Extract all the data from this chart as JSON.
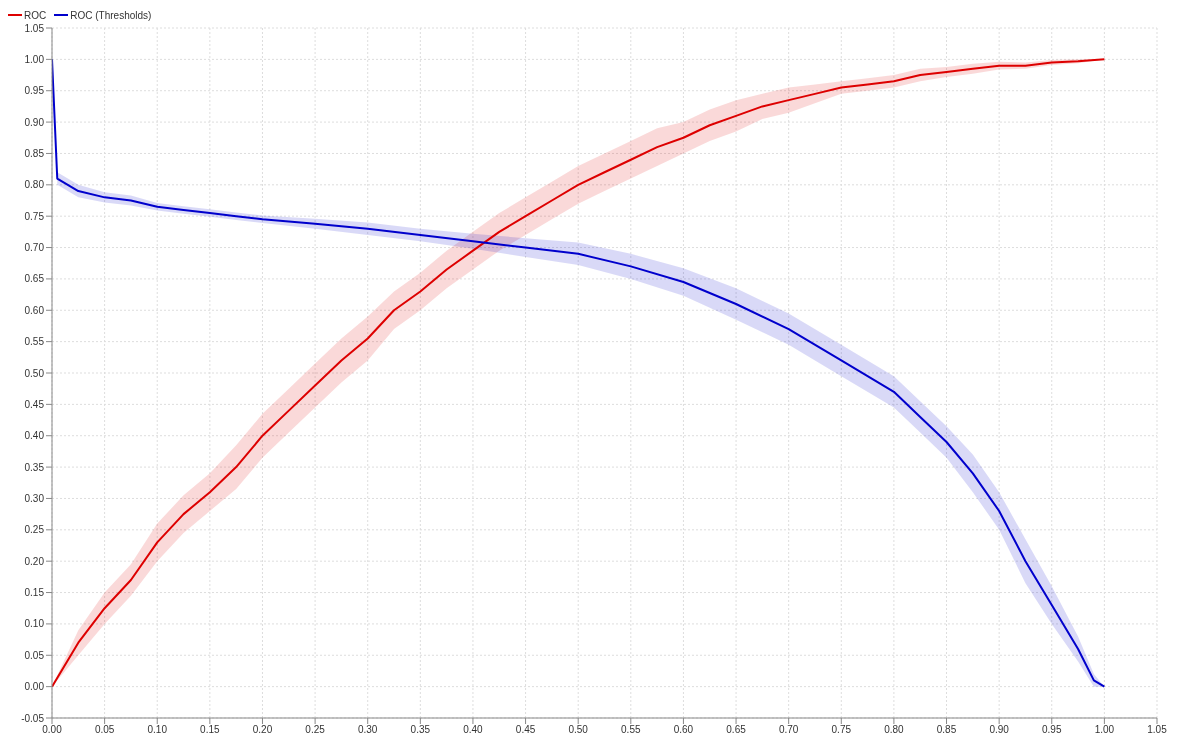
{
  "chart_data": {
    "type": "line",
    "legend": "top left",
    "grid": true,
    "line_style": "solid",
    "marker": "none",
    "xlim": [
      0,
      1.05
    ],
    "ylim": [
      -0.05,
      1.05
    ],
    "xticks": [
      {
        "value": 0,
        "label": "0.00"
      },
      0.05,
      {
        "value": 0.1,
        "label": "0.10"
      },
      0.15,
      {
        "value": 0.2,
        "label": "0.20"
      },
      0.25,
      {
        "value": 0.3,
        "label": "0.30"
      },
      0.35,
      {
        "value": 0.4,
        "label": "0.40"
      },
      0.45,
      {
        "value": 0.5,
        "label": "0.50"
      },
      0.55,
      {
        "value": 0.6,
        "label": "0.60"
      },
      0.65,
      {
        "value": 0.7,
        "label": "0.70"
      },
      0.75,
      {
        "value": 0.8,
        "label": "0.80"
      },
      0.85,
      {
        "value": 0.9,
        "label": "0.90"
      },
      0.95,
      {
        "value": 1,
        "label": "1.00"
      },
      1.05
    ],
    "yticks": [
      -0.05,
      {
        "value": 0,
        "label": "0.00"
      },
      0.05,
      {
        "value": 0.1,
        "label": "0.10"
      },
      0.15,
      {
        "value": 0.2,
        "label": "0.20"
      },
      0.25,
      {
        "value": 0.3,
        "label": "0.30"
      },
      0.35,
      {
        "value": 0.4,
        "label": "0.40"
      },
      0.45,
      {
        "value": 0.5,
        "label": "0.50"
      },
      0.55,
      {
        "value": 0.6,
        "label": "0.60"
      },
      0.65,
      {
        "value": 0.7,
        "label": "0.70"
      },
      0.75,
      {
        "value": 0.8,
        "label": "0.80"
      },
      0.85,
      {
        "value": 0.9,
        "label": "0.90"
      },
      0.95,
      {
        "value": 1,
        "label": "1.00"
      },
      1.05
    ],
    "series": [
      {
        "name": "ROC",
        "color": "#dd0000",
        "x": [
          0,
          0.025,
          0.05,
          0.075,
          0.1,
          0.125,
          0.15,
          0.175,
          0.2,
          0.225,
          0.25,
          0.275,
          0.3,
          0.325,
          0.35,
          0.375,
          0.4,
          0.425,
          0.45,
          0.475,
          0.5,
          0.525,
          0.55,
          0.575,
          0.6,
          0.625,
          0.65,
          0.675,
          0.7,
          0.725,
          0.75,
          0.775,
          0.8,
          0.825,
          0.85,
          0.875,
          0.9,
          0.925,
          0.95,
          0.975,
          1.0
        ],
        "values": [
          0,
          0.07,
          0.125,
          0.17,
          0.23,
          0.275,
          0.31,
          0.35,
          0.4,
          0.44,
          0.48,
          0.52,
          0.555,
          0.6,
          0.63,
          0.665,
          0.695,
          0.725,
          0.75,
          0.775,
          0.8,
          0.82,
          0.84,
          0.86,
          0.875,
          0.895,
          0.91,
          0.925,
          0.935,
          0.945,
          0.955,
          0.96,
          0.965,
          0.975,
          0.98,
          0.985,
          0.99,
          0.99,
          0.995,
          0.997,
          1.0
        ],
        "lower": [
          0,
          0.05,
          0.1,
          0.145,
          0.2,
          0.245,
          0.28,
          0.315,
          0.365,
          0.405,
          0.445,
          0.485,
          0.52,
          0.57,
          0.6,
          0.635,
          0.665,
          0.695,
          0.72,
          0.745,
          0.77,
          0.79,
          0.81,
          0.83,
          0.85,
          0.87,
          0.885,
          0.905,
          0.915,
          0.93,
          0.945,
          0.95,
          0.955,
          0.965,
          0.972,
          0.977,
          0.984,
          0.985,
          0.991,
          0.994,
          1.0
        ],
        "upper": [
          0,
          0.09,
          0.15,
          0.195,
          0.26,
          0.305,
          0.34,
          0.385,
          0.435,
          0.475,
          0.515,
          0.555,
          0.59,
          0.63,
          0.66,
          0.695,
          0.725,
          0.755,
          0.78,
          0.805,
          0.83,
          0.85,
          0.87,
          0.89,
          0.9,
          0.92,
          0.935,
          0.945,
          0.955,
          0.96,
          0.965,
          0.97,
          0.975,
          0.985,
          0.988,
          0.993,
          0.996,
          0.995,
          0.999,
          1.0,
          1.0
        ]
      },
      {
        "name": "ROC (Thresholds)",
        "color": "#0000cc",
        "x": [
          0,
          0.005,
          0.025,
          0.05,
          0.075,
          0.1,
          0.125,
          0.15,
          0.175,
          0.2,
          0.25,
          0.3,
          0.35,
          0.4,
          0.45,
          0.5,
          0.55,
          0.6,
          0.65,
          0.7,
          0.75,
          0.8,
          0.825,
          0.85,
          0.875,
          0.9,
          0.925,
          0.95,
          0.975,
          0.99,
          1.0
        ],
        "values": [
          1.0,
          0.81,
          0.79,
          0.78,
          0.775,
          0.765,
          0.76,
          0.755,
          0.75,
          0.745,
          0.738,
          0.73,
          0.72,
          0.71,
          0.7,
          0.69,
          0.67,
          0.645,
          0.61,
          0.57,
          0.52,
          0.47,
          0.43,
          0.39,
          0.34,
          0.28,
          0.2,
          0.13,
          0.06,
          0.01,
          0.0
        ],
        "lower": [
          null,
          0.8,
          0.78,
          0.772,
          0.767,
          0.759,
          0.754,
          0.749,
          0.744,
          0.739,
          0.73,
          0.72,
          0.71,
          0.698,
          0.685,
          0.672,
          0.65,
          0.623,
          0.585,
          0.545,
          0.495,
          0.445,
          0.405,
          0.365,
          0.31,
          0.25,
          0.165,
          0.1,
          0.04,
          0.0,
          0.0
        ],
        "upper": [
          null,
          0.82,
          0.8,
          0.788,
          0.783,
          0.771,
          0.766,
          0.761,
          0.756,
          0.751,
          0.746,
          0.74,
          0.73,
          0.722,
          0.715,
          0.708,
          0.69,
          0.667,
          0.635,
          0.595,
          0.545,
          0.495,
          0.455,
          0.415,
          0.37,
          0.31,
          0.235,
          0.16,
          0.08,
          0.02,
          0.0
        ]
      }
    ]
  }
}
